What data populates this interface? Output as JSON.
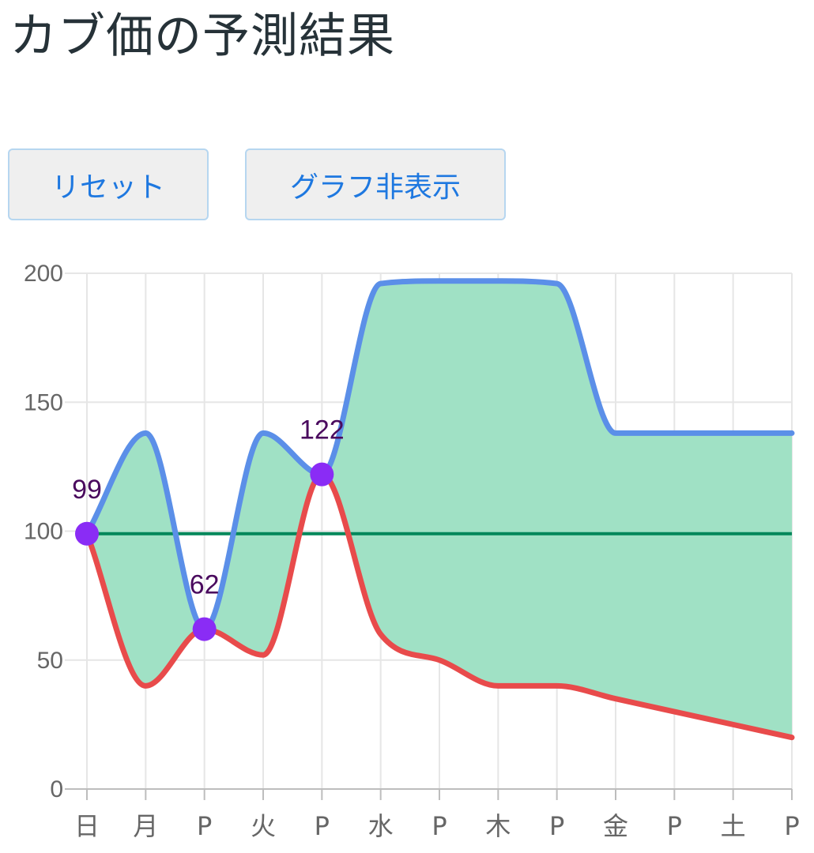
{
  "title": "カブ価の予測結果",
  "buttons": {
    "reset_label": "リセット",
    "toggle_graph_label": "グラフ非表示"
  },
  "colors": {
    "max_line": "#5b8fe8",
    "min_line": "#e84b4b",
    "range_fill": "#a0e1c5",
    "buy_price_line": "#00875a",
    "known_point": "#8a2cf5",
    "grid": "#e6e6e6",
    "axis": "#bdbdbd",
    "title_text": "#263238",
    "button_text": "#1e78e0"
  },
  "chart_data": {
    "type": "area",
    "categories": [
      "日",
      "月",
      "P",
      "火",
      "P",
      "水",
      "P",
      "木",
      "P",
      "金",
      "P",
      "土",
      "P"
    ],
    "ylim": [
      0,
      200
    ],
    "yticks": [
      0,
      50,
      100,
      150,
      200
    ],
    "grid": true,
    "series": [
      {
        "role": "max",
        "values": [
          99,
          138,
          62,
          138,
          122,
          196,
          197,
          197,
          196,
          138,
          138,
          138,
          138
        ]
      },
      {
        "role": "min",
        "values": [
          99,
          40,
          62,
          52,
          122,
          60,
          50,
          40,
          40,
          35,
          30,
          25,
          20
        ]
      },
      {
        "role": "buy_price",
        "values": [
          99,
          99,
          99,
          99,
          99,
          99,
          99,
          99,
          99,
          99,
          99,
          99,
          99
        ]
      }
    ],
    "known_points": [
      {
        "index": 0,
        "value": 99,
        "label": "99"
      },
      {
        "index": 2,
        "value": 62,
        "label": "62"
      },
      {
        "index": 4,
        "value": 122,
        "label": "122"
      }
    ]
  }
}
